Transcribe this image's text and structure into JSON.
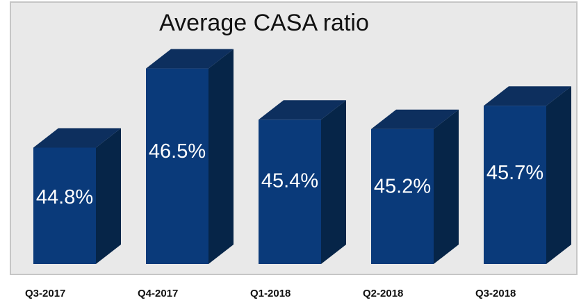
{
  "chart_data": {
    "type": "bar",
    "title": "Average CASA ratio",
    "categories": [
      "Q3-2017",
      "Q4-2017",
      "Q1-2018",
      "Q2-2018",
      "Q3-2018"
    ],
    "values": [
      44.8,
      46.5,
      45.4,
      45.2,
      45.7
    ],
    "data_labels": [
      "44.8%",
      "46.5%",
      "45.4%",
      "45.2%",
      "45.7%"
    ],
    "xlabel": "",
    "ylabel": "",
    "ylim": [
      42.3,
      47.0
    ],
    "grid": false,
    "legend": "none",
    "style": "3d-columns"
  },
  "colors": {
    "plot_background": "#e9e9e9",
    "border": "#c6c6c6",
    "bar_front": "#0a3a7a",
    "bar_side": "#062548",
    "bar_top": "#0d2f5e",
    "label_text": "#ffffff",
    "title_text": "#111111"
  }
}
